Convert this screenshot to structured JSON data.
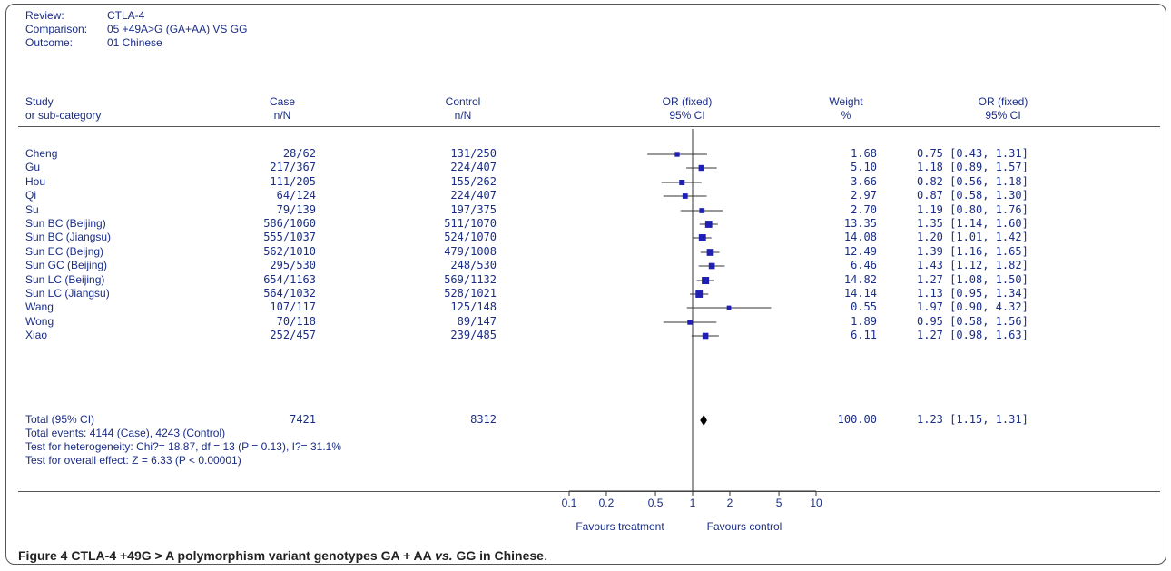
{
  "meta": {
    "review_label": "Review:",
    "review_value": "CTLA-4",
    "comparison_label": "Comparison:",
    "comparison_value": "05 +49A>G (GA+AA) VS GG",
    "outcome_label": "Outcome:",
    "outcome_value": "01 Chinese"
  },
  "headers": {
    "study": "Study",
    "study_sub": "or sub-category",
    "case": "Case",
    "case_sub": "n/N",
    "control": "Control",
    "control_sub": "n/N",
    "or_plot": "OR (fixed)",
    "or_plot_sub": "95% CI",
    "weight": "Weight",
    "weight_sub": "%",
    "or_text": "OR (fixed)",
    "or_text_sub": "95% CI"
  },
  "chart_data": {
    "type": "forest",
    "x_scale": "log",
    "xlim": [
      0.1,
      10
    ],
    "x_ticks": [
      {
        "v": 0.1,
        "label": "0.1"
      },
      {
        "v": 0.2,
        "label": "0.2"
      },
      {
        "v": 0.5,
        "label": "0.5"
      },
      {
        "v": 1,
        "label": "1"
      },
      {
        "v": 2,
        "label": "2"
      },
      {
        "v": 5,
        "label": "5"
      },
      {
        "v": 10,
        "label": "10"
      }
    ],
    "left_label": "Favours treatment",
    "right_label": "Favours control",
    "studies": [
      {
        "name": "Cheng",
        "case": "28/62",
        "control": "131/250",
        "weight": "1.68",
        "ci_text": "0.75 [0.43, 1.31]",
        "or": 0.75,
        "lo": 0.43,
        "hi": 1.31
      },
      {
        "name": "Gu",
        "case": "217/367",
        "control": "224/407",
        "weight": "5.10",
        "ci_text": "1.18 [0.89, 1.57]",
        "or": 1.18,
        "lo": 0.89,
        "hi": 1.57
      },
      {
        "name": "Hou",
        "case": "111/205",
        "control": "155/262",
        "weight": "3.66",
        "ci_text": "0.82 [0.56, 1.18]",
        "or": 0.82,
        "lo": 0.56,
        "hi": 1.18
      },
      {
        "name": "Qi",
        "case": "64/124",
        "control": "224/407",
        "weight": "2.97",
        "ci_text": "0.87 [0.58, 1.30]",
        "or": 0.87,
        "lo": 0.58,
        "hi": 1.3
      },
      {
        "name": "Su",
        "case": "79/139",
        "control": "197/375",
        "weight": "2.70",
        "ci_text": "1.19 [0.80, 1.76]",
        "or": 1.19,
        "lo": 0.8,
        "hi": 1.76
      },
      {
        "name": "Sun BC (Beijing)",
        "case": "586/1060",
        "control": "511/1070",
        "weight": "13.35",
        "ci_text": "1.35 [1.14, 1.60]",
        "or": 1.35,
        "lo": 1.14,
        "hi": 1.6
      },
      {
        "name": "Sun BC (Jiangsu)",
        "case": "555/1037",
        "control": "524/1070",
        "weight": "14.08",
        "ci_text": "1.20 [1.01, 1.42]",
        "or": 1.2,
        "lo": 1.01,
        "hi": 1.42
      },
      {
        "name": "Sun EC (Beijng)",
        "case": "562/1010",
        "control": "479/1008",
        "weight": "12.49",
        "ci_text": "1.39 [1.16, 1.65]",
        "or": 1.39,
        "lo": 1.16,
        "hi": 1.65
      },
      {
        "name": "Sun GC (Beijing)",
        "case": "295/530",
        "control": "248/530",
        "weight": "6.46",
        "ci_text": "1.43 [1.12, 1.82]",
        "or": 1.43,
        "lo": 1.12,
        "hi": 1.82
      },
      {
        "name": "Sun LC (Beijing)",
        "case": "654/1163",
        "control": "569/1132",
        "weight": "14.82",
        "ci_text": "1.27 [1.08, 1.50]",
        "or": 1.27,
        "lo": 1.08,
        "hi": 1.5
      },
      {
        "name": "Sun LC (Jiangsu)",
        "case": "564/1032",
        "control": "528/1021",
        "weight": "14.14",
        "ci_text": "1.13 [0.95, 1.34]",
        "or": 1.13,
        "lo": 0.95,
        "hi": 1.34
      },
      {
        "name": "Wang",
        "case": "107/117",
        "control": "125/148",
        "weight": "0.55",
        "ci_text": "1.97 [0.90, 4.32]",
        "or": 1.97,
        "lo": 0.9,
        "hi": 4.32
      },
      {
        "name": "Wong",
        "case": "70/118",
        "control": "89/147",
        "weight": "1.89",
        "ci_text": "0.95 [0.58, 1.56]",
        "or": 0.95,
        "lo": 0.58,
        "hi": 1.56
      },
      {
        "name": "Xiao",
        "case": "252/457",
        "control": "239/485",
        "weight": "6.11",
        "ci_text": "1.27 [0.98, 1.63]",
        "or": 1.27,
        "lo": 0.98,
        "hi": 1.63
      }
    ],
    "total": {
      "name": "Total (95% CI)",
      "case": "7421",
      "control": "8312",
      "weight": "100.00",
      "ci_text": "1.23 [1.15, 1.31]",
      "or": 1.23,
      "lo": 1.15,
      "hi": 1.31
    },
    "notes": {
      "events": "Total events: 4144 (Case), 4243 (Control)",
      "heterogeneity": "Test for heterogeneity: Chi?= 18.87, df = 13 (P = 0.13), I?= 31.1%",
      "overall": "Test for overall effect: Z = 6.33 (P < 0.00001)"
    }
  },
  "caption": {
    "a": "Figure 4 CTLA-4 +49G > A polymorphism variant genotypes GA + AA ",
    "b": "vs.",
    "c": " GG in Chinese",
    "d": "."
  },
  "colors": {
    "text": "#1a2d86",
    "marker": "#1f1fb4",
    "line": "#333333"
  }
}
